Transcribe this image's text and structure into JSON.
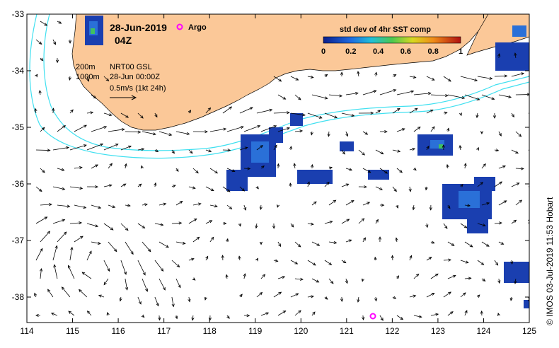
{
  "map": {
    "title_date": "28-Jun-2019",
    "title_time": "04Z",
    "argo_label": "Argo",
    "colorbar": {
      "title": "std dev of 4hr SST comp",
      "ticks": [
        "0",
        "0.2",
        "0.4",
        "0.6",
        "0.8",
        "1"
      ]
    },
    "annotations": {
      "isobath_200": "200m",
      "isobath_1000": "1000m",
      "product": "NRT00 GSL",
      "product_time": "28-Jun 00:00Z",
      "scale": "0.5m/s (1kt 24h)"
    },
    "credit": "© IMOS 03-Jul-2019 11:53 Hobart",
    "x_ticks": [
      "114",
      "115",
      "116",
      "117",
      "118",
      "119",
      "120",
      "121",
      "122",
      "123",
      "124",
      "125"
    ],
    "y_ticks": [
      "-33",
      "-34",
      "-35",
      "-36",
      "-37",
      "-38"
    ],
    "colors": {
      "land": "#fbc898",
      "isobath": "#40e0f0",
      "argo": "#ff00ff",
      "sst_low": "#1a3fb0"
    }
  }
}
